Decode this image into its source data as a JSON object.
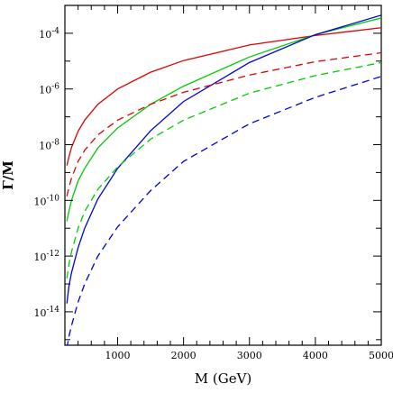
{
  "chart_data": {
    "type": "line",
    "xlabel": "M (GeV)",
    "ylabel": "Γ/M",
    "xlim": [
      200,
      5000
    ],
    "ylim_log10": [
      -15.2,
      -3.0
    ],
    "yscale": "log",
    "x_ticks": [
      1000,
      2000,
      3000,
      4000,
      5000
    ],
    "x_tick_labels": [
      "1000",
      "2000",
      "3000",
      "4000",
      "5000"
    ],
    "y_ticks_log10": [
      -14,
      -12,
      -10,
      -8,
      -6,
      -4
    ],
    "y_tick_labels": [
      {
        "base": "10",
        "exp": "-14"
      },
      {
        "base": "10",
        "exp": "-12"
      },
      {
        "base": "10",
        "exp": "-10"
      },
      {
        "base": "10",
        "exp": "-8"
      },
      {
        "base": "10",
        "exp": "-6"
      },
      {
        "base": "10",
        "exp": "-4"
      }
    ],
    "grid": false,
    "series": [
      {
        "color": "#e00000",
        "style": "solid",
        "x": [
          230,
          260,
          300,
          400,
          500,
          700,
          1000,
          1500,
          2000,
          3000,
          4000,
          5000
        ],
        "log10y": [
          -8.75,
          -8.45,
          -8.1,
          -7.52,
          -7.12,
          -6.55,
          -6.0,
          -5.4,
          -4.98,
          -4.42,
          -4.08,
          -3.8
        ]
      },
      {
        "color": "#00cc00",
        "style": "solid",
        "x": [
          230,
          260,
          300,
          400,
          500,
          700,
          1000,
          1500,
          2000,
          3000,
          4000,
          5000
        ],
        "log10y": [
          -10.75,
          -10.4,
          -10.0,
          -9.3,
          -8.85,
          -8.12,
          -7.4,
          -6.55,
          -5.9,
          -4.85,
          -4.05,
          -3.45
        ]
      },
      {
        "color": "#0000dd",
        "style": "solid",
        "x": [
          230,
          260,
          300,
          400,
          500,
          700,
          1000,
          1500,
          2000,
          3000,
          4000,
          5000
        ],
        "log10y": [
          -13.7,
          -13.1,
          -12.6,
          -11.7,
          -11.0,
          -9.95,
          -8.85,
          -7.5,
          -6.45,
          -5.05,
          -4.05,
          -3.35
        ]
      },
      {
        "color": "#e00000",
        "style": "dashed",
        "x": [
          230,
          260,
          300,
          400,
          500,
          700,
          1000,
          1500,
          2000,
          3000,
          4000,
          5000
        ],
        "log10y": [
          -9.85,
          -9.55,
          -9.2,
          -8.6,
          -8.2,
          -7.65,
          -7.12,
          -6.55,
          -6.12,
          -5.5,
          -5.02,
          -4.7
        ]
      },
      {
        "color": "#00cc00",
        "style": "dashed",
        "x": [
          230,
          260,
          300,
          400,
          500,
          700,
          1000,
          1500,
          2000,
          3000,
          4000,
          5000
        ],
        "log10y": [
          -12.8,
          -12.3,
          -11.85,
          -11.0,
          -10.4,
          -9.6,
          -8.8,
          -7.8,
          -7.12,
          -6.15,
          -5.52,
          -5.05
        ]
      },
      {
        "color": "#0000dd",
        "style": "dashed",
        "x": [
          230,
          260,
          300,
          400,
          500,
          700,
          1000,
          1500,
          2000,
          3000,
          4000,
          5000
        ],
        "log10y": [
          -15.3,
          -14.9,
          -14.5,
          -13.65,
          -13.0,
          -12.0,
          -10.95,
          -9.65,
          -8.6,
          -7.25,
          -6.3,
          -5.55
        ]
      }
    ]
  }
}
